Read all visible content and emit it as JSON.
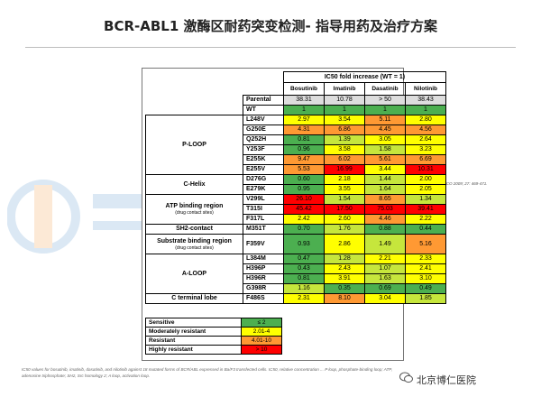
{
  "title": "BCR-ABL1 激酶区耐药突变检测- 指导用药及治疗方案",
  "citation": "Sara Redaelli, et al. JCO 2009; 27: 469-471.",
  "table": {
    "header_main": "IC50 fold increase (WT = 1)",
    "drugs": [
      "Bosutinib",
      "Imatinib",
      "Dasatinib",
      "Nilotinib"
    ],
    "parental": {
      "label": "Parental",
      "values": [
        "38.31",
        "10.78",
        "> 50",
        "38.43"
      ]
    },
    "colors": {
      "green": "#4caf50",
      "yellow": "#ffff00",
      "lime": "#c6e63c",
      "orange": "#ff9933",
      "red": "#ff0000",
      "gray": "#dddddd"
    },
    "groups": [
      {
        "region": "",
        "region_sub": "",
        "rows": [
          {
            "mut": "WT",
            "values": [
              "1",
              "1",
              "1",
              "1"
            ],
            "colors": [
              "green",
              "green",
              "green",
              "green"
            ]
          }
        ]
      },
      {
        "region": "P-LOOP",
        "region_sub": "",
        "rows": [
          {
            "mut": "L248V",
            "values": [
              "2.97",
              "3.54",
              "5.11",
              "2.80"
            ],
            "colors": [
              "yellow",
              "yellow",
              "orange",
              "yellow"
            ]
          },
          {
            "mut": "G250E",
            "values": [
              "4.31",
              "6.86",
              "4.45",
              "4.56"
            ],
            "colors": [
              "orange",
              "orange",
              "orange",
              "orange"
            ]
          },
          {
            "mut": "Q252H",
            "values": [
              "0.81",
              "1.39",
              "3.05",
              "2.64"
            ],
            "colors": [
              "green",
              "lime",
              "yellow",
              "yellow"
            ]
          },
          {
            "mut": "Y253F",
            "values": [
              "0.96",
              "3.58",
              "1.58",
              "3.23"
            ],
            "colors": [
              "green",
              "yellow",
              "lime",
              "yellow"
            ]
          },
          {
            "mut": "E255K",
            "values": [
              "9.47",
              "6.02",
              "5.61",
              "6.69"
            ],
            "colors": [
              "orange",
              "orange",
              "orange",
              "orange"
            ]
          },
          {
            "mut": "E255V",
            "values": [
              "5.53",
              "16.99",
              "3.44",
              "10.31"
            ],
            "colors": [
              "orange",
              "red",
              "yellow",
              "red"
            ]
          }
        ]
      },
      {
        "region": "C-Helix",
        "region_sub": "",
        "rows": [
          {
            "mut": "D276G",
            "values": [
              "0.60",
              "2.18",
              "1.44",
              "2.00"
            ],
            "colors": [
              "green",
              "yellow",
              "lime",
              "yellow"
            ]
          },
          {
            "mut": "E279K",
            "values": [
              "0.95",
              "3.55",
              "1.64",
              "2.05"
            ],
            "colors": [
              "green",
              "yellow",
              "lime",
              "yellow"
            ]
          }
        ]
      },
      {
        "region": "ATP binding region",
        "region_sub": "(drug contact sites)",
        "rows": [
          {
            "mut": "V299L",
            "values": [
              "26.10",
              "1.54",
              "8.65",
              "1.34"
            ],
            "colors": [
              "red",
              "lime",
              "orange",
              "lime"
            ]
          },
          {
            "mut": "T315I",
            "values": [
              "45.42",
              "17.50",
              "75.03",
              "39.41"
            ],
            "colors": [
              "red",
              "red",
              "red",
              "red"
            ]
          },
          {
            "mut": "F317L",
            "values": [
              "2.42",
              "2.60",
              "4.46",
              "2.22"
            ],
            "colors": [
              "yellow",
              "yellow",
              "orange",
              "yellow"
            ]
          }
        ]
      },
      {
        "region": "SH2-contact",
        "region_sub": "",
        "rows": [
          {
            "mut": "M351T",
            "values": [
              "0.70",
              "1.76",
              "0.88",
              "0.44"
            ],
            "colors": [
              "green",
              "lime",
              "green",
              "green"
            ]
          }
        ]
      },
      {
        "region": "Substrate binding region",
        "region_sub": "(drug contact sites)",
        "rows": [
          {
            "mut": "F359V",
            "values": [
              "0.93",
              "2.86",
              "1.49",
              "5.16"
            ],
            "colors": [
              "green",
              "yellow",
              "lime",
              "orange"
            ]
          }
        ]
      },
      {
        "region": "A-LOOP",
        "region_sub": "",
        "rows": [
          {
            "mut": "L384M",
            "values": [
              "0.47",
              "1.28",
              "2.21",
              "2.33"
            ],
            "colors": [
              "green",
              "lime",
              "yellow",
              "yellow"
            ]
          },
          {
            "mut": "H396P",
            "values": [
              "0.43",
              "2.43",
              "1.07",
              "2.41"
            ],
            "colors": [
              "green",
              "yellow",
              "lime",
              "yellow"
            ]
          },
          {
            "mut": "H396R",
            "values": [
              "0.81",
              "3.91",
              "1.63",
              "3.10"
            ],
            "colors": [
              "green",
              "yellow",
              "lime",
              "yellow"
            ]
          },
          {
            "mut": "G398R",
            "values": [
              "1.16",
              "0.35",
              "0.69",
              "0.49"
            ],
            "colors": [
              "lime",
              "green",
              "green",
              "green"
            ]
          }
        ]
      },
      {
        "region": "C terminal lobe",
        "region_sub": "",
        "rows": [
          {
            "mut": "F486S",
            "values": [
              "2.31",
              "8.10",
              "3.04",
              "1.85"
            ],
            "colors": [
              "yellow",
              "orange",
              "yellow",
              "lime"
            ]
          }
        ]
      }
    ]
  },
  "legend": [
    {
      "label": "Sensitive",
      "value": "≤ 2",
      "color": "green"
    },
    {
      "label": "Moderately resistant",
      "value": "2.01-4",
      "color": "yellow"
    },
    {
      "label": "Resistant",
      "value": "4.01-10",
      "color": "orange"
    },
    {
      "label": "Highly resistant",
      "value": "> 10",
      "color": "red"
    }
  ],
  "footnote": "IC50 values for bosutinib, imatinib, dasatinib, and nilotinib against 18 mutated forms of BCR/ABL expressed in Ba/F3 transfected cells. IC50, relative concentration ... P loop, phosphate-binding loop; ATP, adenosine triphosphate; SH2, Src homology 2; A loop, activation loop.",
  "brand": "北京博仁医院"
}
